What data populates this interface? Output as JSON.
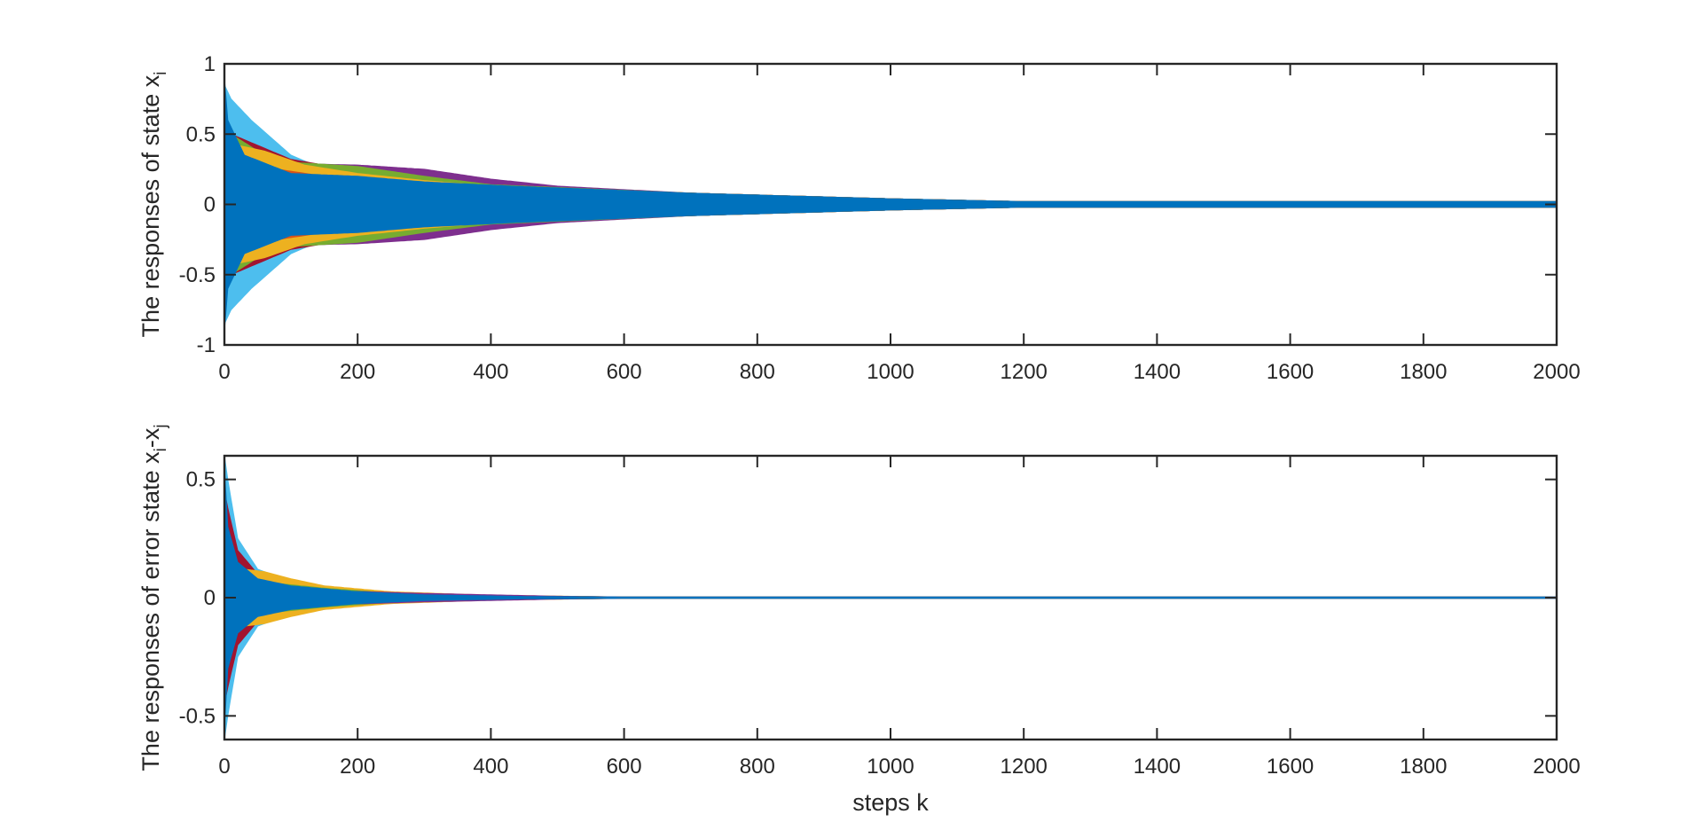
{
  "chart_data": [
    {
      "type": "line",
      "title": "",
      "xlabel": "",
      "ylabel": "The responses of state x",
      "ylabel_subscript": "i",
      "xlim": [
        0,
        2000
      ],
      "ylim": [
        -1,
        1
      ],
      "x_ticks": [
        0,
        200,
        400,
        600,
        800,
        1000,
        1200,
        1400,
        1600,
        1800,
        2000
      ],
      "x_tick_labels": [
        "0",
        "200",
        "400",
        "600",
        "800",
        "1000",
        "1200",
        "1400",
        "1600",
        "1800",
        "2000"
      ],
      "y_ticks": [
        -1,
        -0.5,
        0,
        0.5,
        1
      ],
      "y_tick_labels": [
        "-1",
        "-0.5",
        "0",
        "0.5",
        "1"
      ],
      "grid": false,
      "series": [
        {
          "color": "#4DBEEE",
          "envelope": {
            "k": [
              0,
              10,
              40,
              100,
              150,
              250,
              400,
              700,
              1000,
              1200,
              2000
            ],
            "amp": [
              0.85,
              0.75,
              0.6,
              0.35,
              0.25,
              0.2,
              0.13,
              0.08,
              0.04,
              0.02,
              0.02
            ]
          }
        },
        {
          "color": "#A2142F",
          "envelope": {
            "k": [
              0,
              10,
              60,
              100,
              150,
              250,
              400,
              700,
              1000,
              1200,
              2000
            ],
            "amp": [
              0.6,
              0.5,
              0.4,
              0.32,
              0.28,
              0.22,
              0.14,
              0.08,
              0.04,
              0.02,
              0.02
            ]
          }
        },
        {
          "color": "#7E2F8E",
          "envelope": {
            "k": [
              0,
              50,
              100,
              200,
              300,
              400,
              500,
              700,
              1000,
              1200,
              2000
            ],
            "amp": [
              0.3,
              0.3,
              0.29,
              0.28,
              0.25,
              0.18,
              0.13,
              0.08,
              0.04,
              0.02,
              0.02
            ]
          }
        },
        {
          "color": "#77AC30",
          "envelope": {
            "k": [
              0,
              10,
              50,
              100,
              200,
              300,
              400,
              700,
              1000,
              1200,
              2000
            ],
            "amp": [
              0.55,
              0.5,
              0.38,
              0.3,
              0.27,
              0.2,
              0.14,
              0.08,
              0.04,
              0.02,
              0.02
            ]
          }
        },
        {
          "color": "#EDB120",
          "envelope": {
            "k": [
              0,
              20,
              60,
              120,
              200,
              300,
              400,
              700,
              1000,
              1200,
              2000
            ],
            "amp": [
              0.45,
              0.42,
              0.38,
              0.28,
              0.22,
              0.17,
              0.13,
              0.08,
              0.04,
              0.02,
              0.02
            ]
          }
        },
        {
          "color": "#D95319",
          "envelope": {
            "k": [
              0,
              20,
              80,
              150,
              250,
              400,
              700,
              1000,
              1200,
              2000
            ],
            "amp": [
              0.35,
              0.32,
              0.25,
              0.2,
              0.17,
              0.13,
              0.08,
              0.04,
              0.02,
              0.02
            ]
          }
        },
        {
          "color": "#0072BD",
          "envelope": {
            "k": [
              0,
              5,
              30,
              100,
              200,
              300,
              430,
              700,
              1000,
              1200,
              1400,
              2000
            ],
            "amp": [
              0.9,
              0.6,
              0.35,
              0.22,
              0.2,
              0.16,
              0.13,
              0.08,
              0.04,
              0.02,
              0.02,
              0.02
            ]
          }
        }
      ]
    },
    {
      "type": "line",
      "title": "",
      "xlabel": "steps k",
      "ylabel": "The responses of error state x",
      "ylabel_subscript": "i",
      "ylabel_mid": "-x",
      "ylabel_subscript2": "j",
      "xlim": [
        0,
        2000
      ],
      "ylim": [
        -0.6,
        0.6
      ],
      "x_ticks": [
        0,
        200,
        400,
        600,
        800,
        1000,
        1200,
        1400,
        1600,
        1800,
        2000
      ],
      "x_tick_labels": [
        "0",
        "200",
        "400",
        "600",
        "800",
        "1000",
        "1200",
        "1400",
        "1600",
        "1800",
        "2000"
      ],
      "y_ticks": [
        -0.5,
        0,
        0.5
      ],
      "y_tick_labels": [
        "-0.5",
        "0",
        "0.5"
      ],
      "grid": false,
      "series": [
        {
          "color": "#4DBEEE",
          "envelope": {
            "k": [
              0,
              5,
              20,
              50,
              100,
              200,
              300,
              450,
              600,
              2000
            ],
            "amp": [
              0.6,
              0.5,
              0.25,
              0.12,
              0.07,
              0.03,
              0.015,
              0.006,
              0.003,
              0.003
            ]
          }
        },
        {
          "color": "#A2142F",
          "envelope": {
            "k": [
              0,
              5,
              20,
              50,
              100,
              200,
              300,
              450,
              600,
              2000
            ],
            "amp": [
              0.45,
              0.38,
              0.2,
              0.1,
              0.06,
              0.03,
              0.015,
              0.006,
              0.003,
              0.003
            ]
          }
        },
        {
          "color": "#EDB120",
          "envelope": {
            "k": [
              0,
              30,
              60,
              100,
              150,
              250,
              400,
              600,
              2000
            ],
            "amp": [
              0.15,
              0.12,
              0.11,
              0.08,
              0.05,
              0.025,
              0.01,
              0.003,
              0.003
            ]
          }
        },
        {
          "color": "#77AC30",
          "envelope": {
            "k": [
              0,
              30,
              80,
              150,
              250,
              400,
              600,
              2000
            ],
            "amp": [
              0.1,
              0.08,
              0.06,
              0.04,
              0.02,
              0.008,
              0.003,
              0.003
            ]
          }
        },
        {
          "color": "#7E2F8E",
          "envelope": {
            "k": [
              0,
              50,
              150,
              300,
              500,
              600,
              2000
            ],
            "amp": [
              0.05,
              0.04,
              0.03,
              0.018,
              0.006,
              0.003,
              0.003
            ]
          }
        },
        {
          "color": "#0072BD",
          "envelope": {
            "k": [
              0,
              5,
              20,
              50,
              100,
              200,
              300,
              450,
              600,
              2000
            ],
            "amp": [
              0.55,
              0.3,
              0.15,
              0.08,
              0.05,
              0.025,
              0.012,
              0.005,
              0.003,
              0.003
            ]
          }
        }
      ]
    }
  ]
}
